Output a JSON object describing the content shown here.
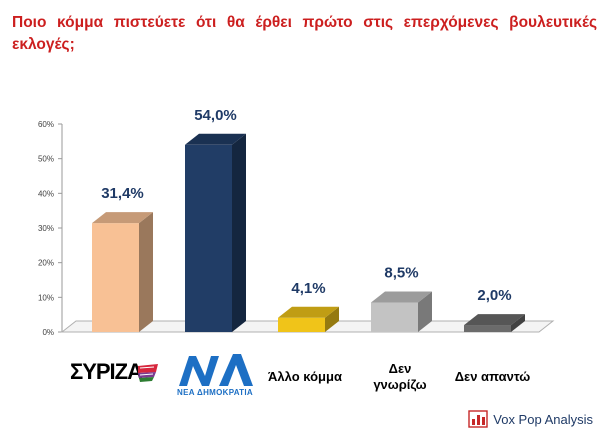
{
  "question": "Ποιο κόμμα πιστεύετε ότι θα έρθει πρώτο στις επερχόμενες βουλευτικές εκλογές;",
  "logos": {
    "syriza": "ΣΥΡΙΖΑ",
    "nd_mark": "ΝΔ",
    "nd_sub": "ΝΕΑ ΔΗΜΟΚΡΑΤΙΑ"
  },
  "brand": "Vox Pop Analysis",
  "chart_data": {
    "type": "bar",
    "title": "",
    "xlabel": "",
    "ylabel": "",
    "ylim": [
      0,
      60
    ],
    "yticks": [
      "0%",
      "10%",
      "20%",
      "30%",
      "40%",
      "50%",
      "60%"
    ],
    "categories": [
      "ΣΥΡΙΖΑ",
      "ΝΔ",
      "Άλλο κόμμα",
      "Δεν γνωρίζω",
      "Δεν απαντώ"
    ],
    "values": [
      31.4,
      54.0,
      4.1,
      8.5,
      2.0
    ],
    "value_labels": [
      "31,4%",
      "54,0%",
      "4,1%",
      "8,5%",
      "2,0%"
    ],
    "bar_colors": [
      "#f8c195",
      "#213d66",
      "#f0c419",
      "#c3c3c3",
      "#6b6b6b"
    ],
    "value_label_color": "#1f3a66",
    "grid": false,
    "style": "3d"
  }
}
